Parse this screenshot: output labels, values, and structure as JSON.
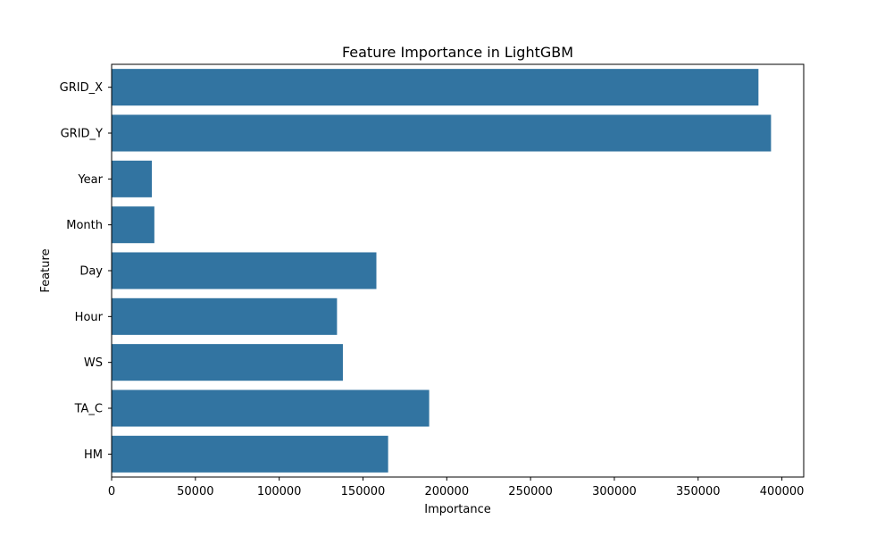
{
  "chart_data": {
    "type": "bar",
    "orientation": "horizontal",
    "title": "Feature Importance in LightGBM",
    "xlabel": "Importance",
    "ylabel": "Feature",
    "categories": [
      "GRID_X",
      "GRID_Y",
      "Year",
      "Month",
      "Day",
      "Hour",
      "WS",
      "TA_C",
      "HM"
    ],
    "values": [
      386000,
      393500,
      24000,
      25500,
      158000,
      134500,
      138000,
      189500,
      165000
    ],
    "xlim": [
      0,
      413000
    ],
    "xticks": [
      "0",
      "50000",
      "100000",
      "150000",
      "200000",
      "250000",
      "300000",
      "350000",
      "400000"
    ],
    "bar_color": "#3274a1",
    "grid": false
  }
}
